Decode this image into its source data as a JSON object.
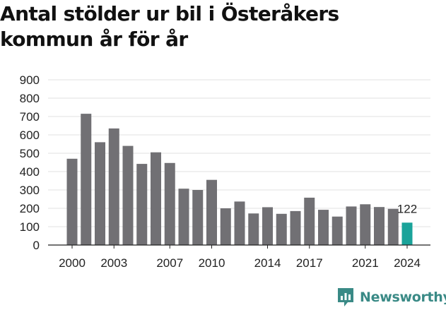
{
  "chart_data": {
    "type": "bar",
    "title": "Antal stölder ur bil i Österåkers kommun år för år",
    "xlabel": "",
    "ylabel": "",
    "categories": [
      "2000",
      "2001",
      "2002",
      "2003",
      "2004",
      "2005",
      "2006",
      "2007",
      "2008",
      "2009",
      "2010",
      "2011",
      "2012",
      "2013",
      "2014",
      "2015",
      "2016",
      "2017",
      "2018",
      "2019",
      "2020",
      "2021",
      "2022",
      "2023",
      "2024"
    ],
    "values": [
      470,
      715,
      560,
      635,
      540,
      442,
      505,
      447,
      307,
      300,
      355,
      200,
      237,
      172,
      206,
      170,
      185,
      258,
      192,
      155,
      210,
      222,
      207,
      197,
      122
    ],
    "ylim": [
      0,
      900
    ],
    "yticks": [
      "0",
      "100",
      "200",
      "300",
      "400",
      "500",
      "600",
      "700",
      "800",
      "900"
    ],
    "xtick_labels": [
      "2000",
      "2003",
      "2007",
      "2010",
      "2014",
      "2017",
      "2021",
      "2024"
    ],
    "highlight": {
      "category": "2024",
      "label": "122"
    },
    "grid": true,
    "colors": {
      "bar": "#717074",
      "highlight": "#1aa39a",
      "grid": "#e2e2e2",
      "axis": "#222222"
    }
  },
  "brand": {
    "name": "Newsworthy",
    "icon": "newsworthy-logo-icon",
    "color": "#3a8a86"
  }
}
